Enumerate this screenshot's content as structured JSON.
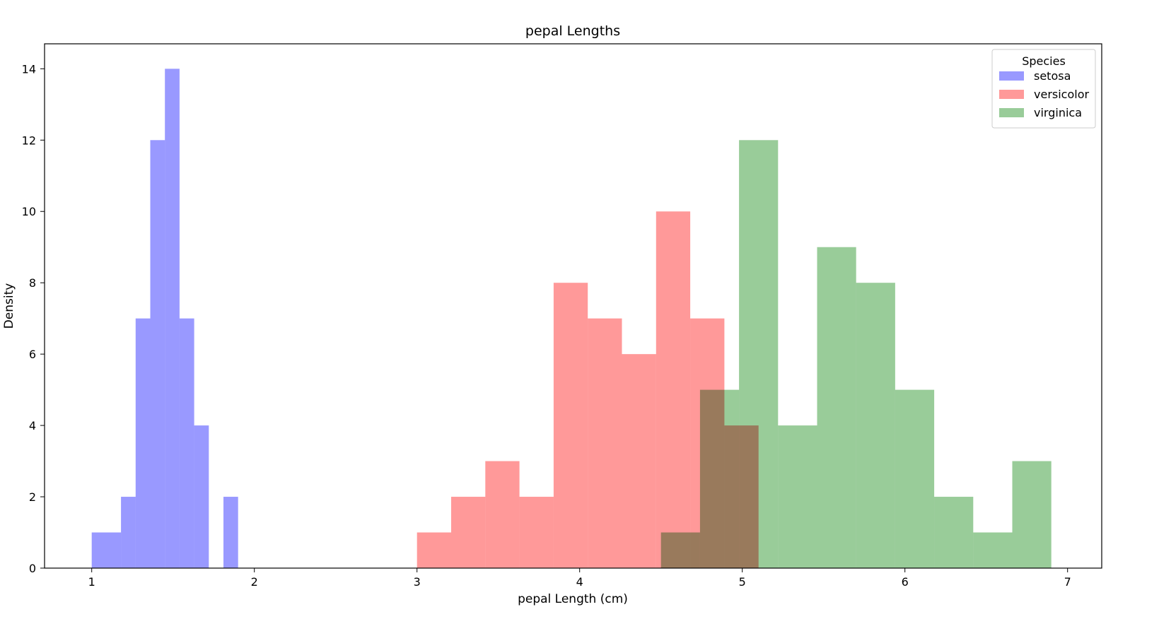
{
  "chart_data": {
    "type": "histogram",
    "title": "pepal Lengths",
    "xlabel": "pepal Length (cm)",
    "ylabel": "Density",
    "xlim": [
      0.71,
      7.21
    ],
    "ylim": [
      0,
      14.7
    ],
    "xticks": [
      1,
      2,
      3,
      4,
      5,
      6,
      7
    ],
    "yticks": [
      0,
      2,
      4,
      6,
      8,
      10,
      12,
      14
    ],
    "legend": {
      "title": "Species",
      "placement": "top-right"
    },
    "grid": false,
    "series": [
      {
        "name": "setosa",
        "color": "#9999ff",
        "bins": [
          {
            "x0": 1.0,
            "x1": 1.18,
            "y": 1
          },
          {
            "x0": 1.18,
            "x1": 1.27,
            "y": 2
          },
          {
            "x0": 1.27,
            "x1": 1.36,
            "y": 7
          },
          {
            "x0": 1.36,
            "x1": 1.45,
            "y": 12
          },
          {
            "x0": 1.45,
            "x1": 1.54,
            "y": 14
          },
          {
            "x0": 1.54,
            "x1": 1.63,
            "y": 7
          },
          {
            "x0": 1.63,
            "x1": 1.72,
            "y": 4
          },
          {
            "x0": 1.81,
            "x1": 1.9,
            "y": 2
          }
        ]
      },
      {
        "name": "versicolor",
        "color": "#ff9999",
        "bins": [
          {
            "x0": 3.0,
            "x1": 3.21,
            "y": 1
          },
          {
            "x0": 3.21,
            "x1": 3.42,
            "y": 2
          },
          {
            "x0": 3.42,
            "x1": 3.63,
            "y": 3
          },
          {
            "x0": 3.63,
            "x1": 3.84,
            "y": 2
          },
          {
            "x0": 3.84,
            "x1": 4.05,
            "y": 8
          },
          {
            "x0": 4.05,
            "x1": 4.26,
            "y": 7
          },
          {
            "x0": 4.26,
            "x1": 4.47,
            "y": 6
          },
          {
            "x0": 4.47,
            "x1": 4.68,
            "y": 10
          },
          {
            "x0": 4.68,
            "x1": 4.89,
            "y": 7
          },
          {
            "x0": 4.89,
            "x1": 5.1,
            "y": 4
          }
        ]
      },
      {
        "name": "virginica",
        "color": "#99cc99",
        "bins": [
          {
            "x0": 4.5,
            "x1": 4.74,
            "y": 1
          },
          {
            "x0": 4.74,
            "x1": 4.98,
            "y": 5
          },
          {
            "x0": 4.98,
            "x1": 5.22,
            "y": 12
          },
          {
            "x0": 5.22,
            "x1": 5.46,
            "y": 4
          },
          {
            "x0": 5.46,
            "x1": 5.7,
            "y": 9
          },
          {
            "x0": 5.7,
            "x1": 5.94,
            "y": 8
          },
          {
            "x0": 5.94,
            "x1": 6.18,
            "y": 5
          },
          {
            "x0": 6.18,
            "x1": 6.42,
            "y": 2
          },
          {
            "x0": 6.42,
            "x1": 6.66,
            "y": 1
          },
          {
            "x0": 6.66,
            "x1": 6.9,
            "y": 3
          }
        ]
      }
    ]
  }
}
